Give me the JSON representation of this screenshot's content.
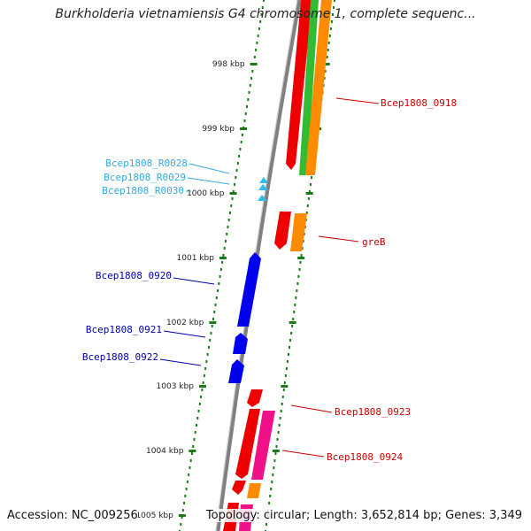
{
  "title": "Burkholderia vietnamiensis G4 chromosome 1, complete sequenc...",
  "footer": {
    "accession": "Accession: NC_009256",
    "summary": "Topology: circular; Length: 3,652,814 bp; Genes: 3,349"
  },
  "colors": {
    "backbone": "#808080",
    "tick": "#1a7a1a",
    "cds_red": "#ee0000",
    "cds_orange": "#ff8c00",
    "cds_green": "#33bb33",
    "cds_magenta": "#ee1188",
    "cds_blue": "#0000ee",
    "trna_cyan": "#33bbee",
    "label_red": "#cc0000",
    "label_blue": "#0000aa",
    "label_cyan": "#33aadd"
  },
  "ticks": [
    "998 kbp",
    "999 kbp",
    "1000 kbp",
    "1001 kbp",
    "1002 kbp",
    "1003 kbp",
    "1004 kbp",
    "1005 kbp"
  ],
  "gene_labels": [
    {
      "id": "bcep1808-0918",
      "text": "Bcep1808_0918",
      "color": "label_red"
    },
    {
      "id": "bcep1808-r0028",
      "text": "Bcep1808_R0028",
      "color": "label_cyan"
    },
    {
      "id": "bcep1808-r0029",
      "text": "Bcep1808_R0029",
      "color": "label_cyan"
    },
    {
      "id": "bcep1808-r0030",
      "text": "Bcep1808_R0030",
      "color": "label_cyan"
    },
    {
      "id": "greb",
      "text": "greB",
      "color": "label_red"
    },
    {
      "id": "bcep1808-0920",
      "text": "Bcep1808_0920",
      "color": "label_blue"
    },
    {
      "id": "bcep1808-0921",
      "text": "Bcep1808_0921",
      "color": "label_blue"
    },
    {
      "id": "bcep1808-0922",
      "text": "Bcep1808_0922",
      "color": "label_blue"
    },
    {
      "id": "bcep1808-0923",
      "text": "Bcep1808_0923",
      "color": "label_red"
    },
    {
      "id": "bcep1808-0924",
      "text": "Bcep1808_0924",
      "color": "label_red"
    }
  ]
}
